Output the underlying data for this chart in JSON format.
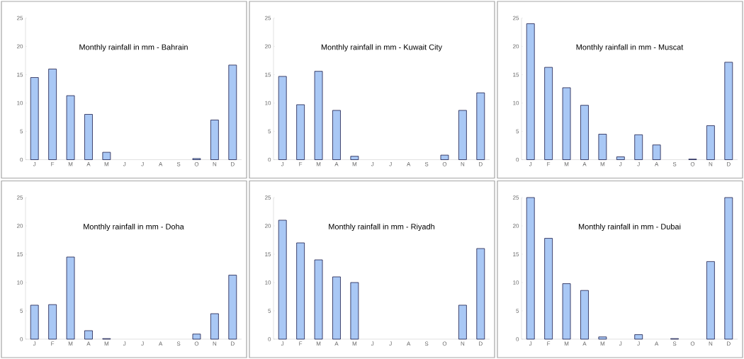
{
  "chart_data": [
    {
      "type": "bar",
      "title": "Monthly rainfall in mm - Bahrain",
      "categories": [
        "J",
        "F",
        "M",
        "A",
        "M",
        "J",
        "J",
        "A",
        "S",
        "O",
        "N",
        "D"
      ],
      "values": [
        14.5,
        16,
        11.3,
        8,
        1.3,
        0,
        0,
        0,
        0,
        0.2,
        7,
        16.7
      ],
      "color": "#a9c8f5",
      "ylim": [
        0,
        25
      ],
      "yticks": [
        0,
        5,
        10,
        15,
        20,
        25
      ]
    },
    {
      "type": "bar",
      "title": "Monthly rainfall in mm - Kuwait City",
      "categories": [
        "J",
        "F",
        "M",
        "A",
        "M",
        "J",
        "J",
        "A",
        "S",
        "O",
        "N",
        "D"
      ],
      "values": [
        14.7,
        9.7,
        15.6,
        8.7,
        0.6,
        0,
        0,
        0,
        0,
        0.8,
        8.7,
        11.8
      ],
      "color": "#a9c8f5",
      "ylim": [
        0,
        25
      ],
      "yticks": [
        0,
        5,
        10,
        15,
        20,
        25
      ]
    },
    {
      "type": "bar",
      "title": "Monthly rainfall in mm - Muscat",
      "categories": [
        "J",
        "F",
        "M",
        "A",
        "M",
        "J",
        "J",
        "A",
        "S",
        "O",
        "N",
        "D"
      ],
      "values": [
        24,
        16.3,
        12.7,
        9.6,
        4.5,
        0.5,
        4.4,
        2.6,
        0,
        0.1,
        6,
        17.2
      ],
      "color": "#a9c8f5",
      "ylim": [
        0,
        25
      ],
      "yticks": [
        0,
        5,
        10,
        15,
        20,
        25
      ]
    },
    {
      "type": "bar",
      "title": "Monthly rainfall in mm - Doha",
      "categories": [
        "J",
        "F",
        "M",
        "A",
        "M",
        "J",
        "J",
        "A",
        "S",
        "O",
        "N",
        "D"
      ],
      "values": [
        6,
        6.1,
        14.5,
        1.5,
        0.1,
        0,
        0,
        0,
        0,
        0.9,
        4.5,
        11.3
      ],
      "color": "#a9c8f5",
      "ylim": [
        0,
        25
      ],
      "yticks": [
        0,
        5,
        10,
        15,
        20,
        25
      ]
    },
    {
      "type": "bar",
      "title": "Monthly rainfall in mm - Riyadh",
      "categories": [
        "J",
        "F",
        "M",
        "A",
        "M",
        "J",
        "J",
        "A",
        "S",
        "O",
        "N",
        "D"
      ],
      "values": [
        21,
        17,
        14,
        11,
        10,
        0,
        0,
        0,
        0,
        0,
        6,
        16
      ],
      "color": "#a9c8f5",
      "ylim": [
        0,
        25
      ],
      "yticks": [
        0,
        5,
        10,
        15,
        20,
        25
      ]
    },
    {
      "type": "bar",
      "title": "Monthly rainfall in mm - Dubai",
      "categories": [
        "J",
        "F",
        "M",
        "A",
        "M",
        "J",
        "J",
        "A",
        "S",
        "O",
        "N",
        "D"
      ],
      "values": [
        25,
        17.8,
        9.8,
        8.6,
        0.4,
        0,
        0.8,
        0,
        0.1,
        0,
        13.7,
        25
      ],
      "color": "#a9c8f5",
      "ylim": [
        0,
        25
      ],
      "yticks": [
        0,
        5,
        10,
        15,
        20,
        25
      ]
    }
  ]
}
